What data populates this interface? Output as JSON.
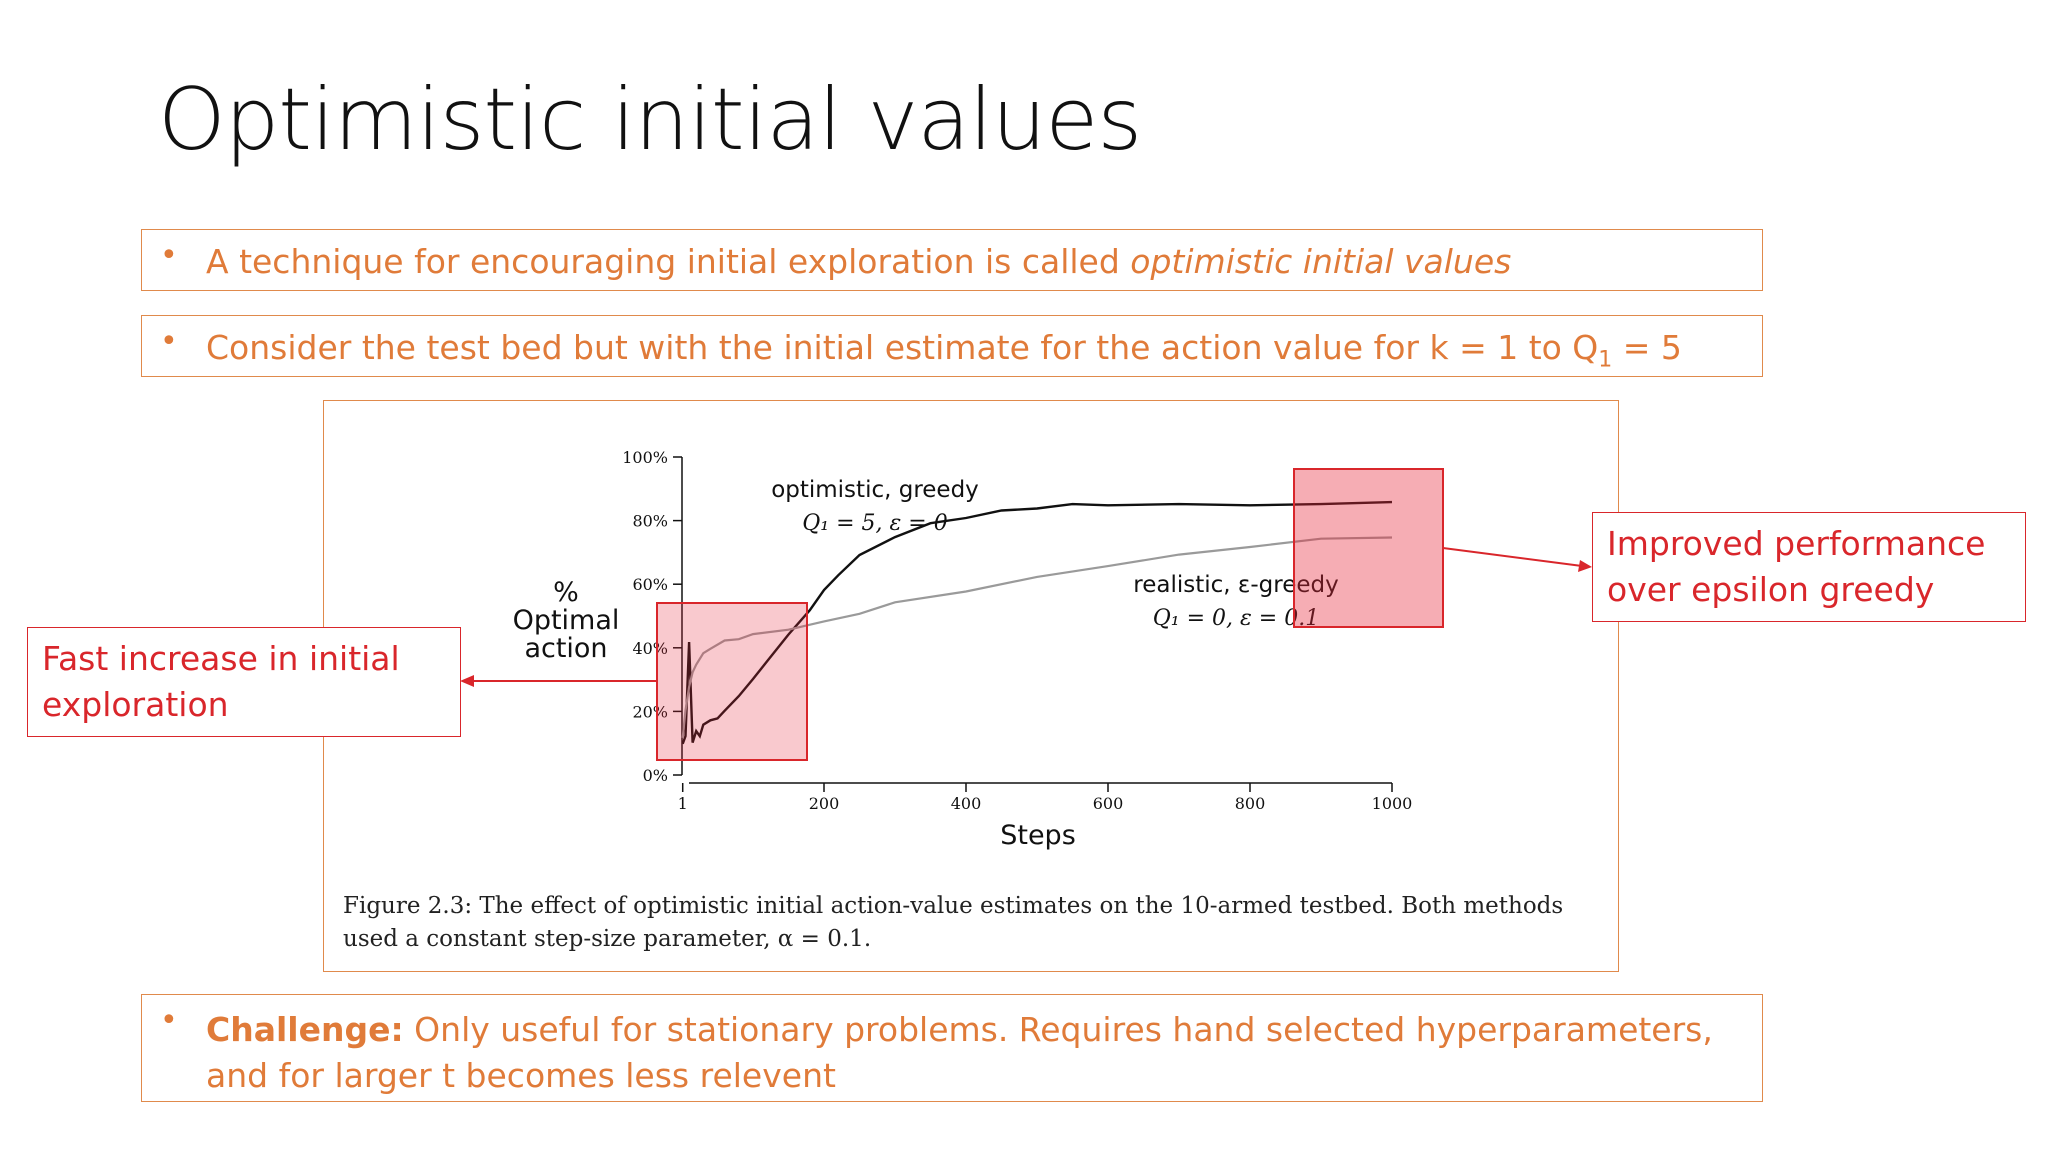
{
  "slide": {
    "title": "Optimistic initial values"
  },
  "bullets": {
    "b1": {
      "text": "A technique for encouraging initial exploration is called ",
      "emph": "optimistic initial values"
    },
    "b2": {
      "text": "Consider the test bed but with the initial estimate for the action value for k = 1 to Q",
      "sub": "1",
      "tail": " = 5"
    },
    "b3": {
      "bold": "Challenge:",
      "text": " Only useful for stationary problems. Requires hand selected hyperparameters, and for larger t becomes less relevent"
    },
    "bullet_char": "•"
  },
  "figure": {
    "caption": "Figure 2.3: The effect of optimistic initial action-value estimates on the 10-armed testbed. Both methods used a constant step-size parameter, α = 0.1."
  },
  "callouts": {
    "left": "Fast increase in initial exploration",
    "right": "Improved performance over epsilon greedy"
  },
  "colors": {
    "accent": "#e07b39",
    "highlight": "#d9262b",
    "series_optimistic": "#111111",
    "series_realistic": "#9a9a9a"
  },
  "chart_data": {
    "type": "line",
    "ylabel": "% Optimal action",
    "xlabel": "Steps",
    "ylim": [
      0,
      100
    ],
    "xlim": [
      0,
      1000
    ],
    "yticks": [
      "0%",
      "20%",
      "40%",
      "60%",
      "80%",
      "100%"
    ],
    "xticks": [
      "1",
      "200",
      "400",
      "600",
      "800",
      "1000"
    ],
    "series": [
      {
        "name": "optimistic, greedy",
        "params": "Q₁ = 5, ε = 0",
        "x": [
          1,
          5,
          10,
          15,
          20,
          25,
          30,
          40,
          50,
          60,
          80,
          100,
          120,
          150,
          180,
          200,
          220,
          250,
          300,
          350,
          400,
          450,
          500,
          550,
          600,
          700,
          800,
          900,
          1000
        ],
        "values": [
          10,
          12,
          42,
          10,
          14,
          12,
          16,
          17,
          18,
          20,
          25,
          30,
          36,
          44,
          52,
          58,
          63,
          69,
          75,
          79,
          81,
          83,
          84,
          85,
          85,
          85,
          85,
          85,
          86
        ]
      },
      {
        "name": "realistic, ε-greedy",
        "params": "Q₁ = 0, ε = 0.1",
        "x": [
          1,
          5,
          10,
          15,
          20,
          30,
          40,
          60,
          80,
          100,
          150,
          200,
          250,
          300,
          400,
          500,
          600,
          700,
          800,
          900,
          1000
        ],
        "values": [
          12,
          20,
          28,
          32,
          35,
          38,
          40,
          42,
          43,
          44,
          46,
          48,
          51,
          54,
          58,
          62,
          66,
          69,
          72,
          74,
          75
        ]
      }
    ]
  }
}
